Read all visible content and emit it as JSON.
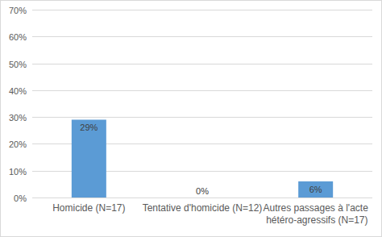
{
  "chart_data": {
    "type": "bar",
    "categories": [
      "Homicide (N=17)",
      "Tentative d'homicide (N=12)",
      "Autres passages à l'acte hétéro-agressifs (N=17)"
    ],
    "values": [
      29,
      0,
      6
    ],
    "value_labels": [
      "29%",
      "0%",
      "6%"
    ],
    "color": "#5b9bd5",
    "ylim": [
      0,
      70
    ],
    "yticks": [
      {
        "value": 0,
        "label": "0%"
      },
      {
        "value": 10,
        "label": "10%"
      },
      {
        "value": 20,
        "label": "20%"
      },
      {
        "value": 30,
        "label": "30%"
      },
      {
        "value": 40,
        "label": "40%"
      },
      {
        "value": 50,
        "label": "50%"
      },
      {
        "value": 60,
        "label": "60%"
      },
      {
        "value": 70,
        "label": "70%"
      }
    ],
    "grid": true,
    "data_labels": true
  }
}
